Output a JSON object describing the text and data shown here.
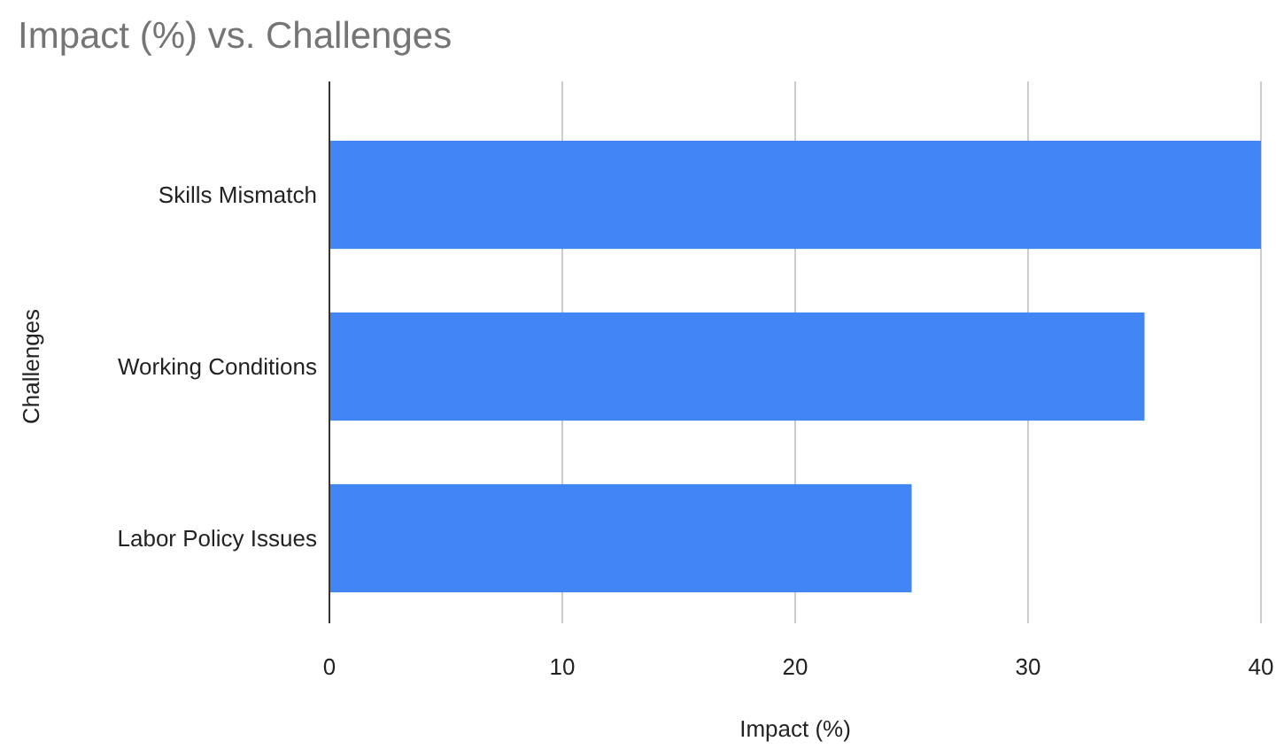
{
  "chart_data": {
    "type": "bar",
    "orientation": "horizontal",
    "title": "Impact (%) vs. Challenges",
    "xlabel": "Impact (%)",
    "ylabel": "Challenges",
    "categories": [
      "Skills Mismatch",
      "Working Conditions",
      "Labor Policy Issues"
    ],
    "values": [
      40,
      35,
      25
    ],
    "color": "#4285f4",
    "xlim": [
      0,
      40
    ],
    "xticks": [
      0,
      10,
      20,
      30,
      40
    ],
    "grid": "x"
  }
}
